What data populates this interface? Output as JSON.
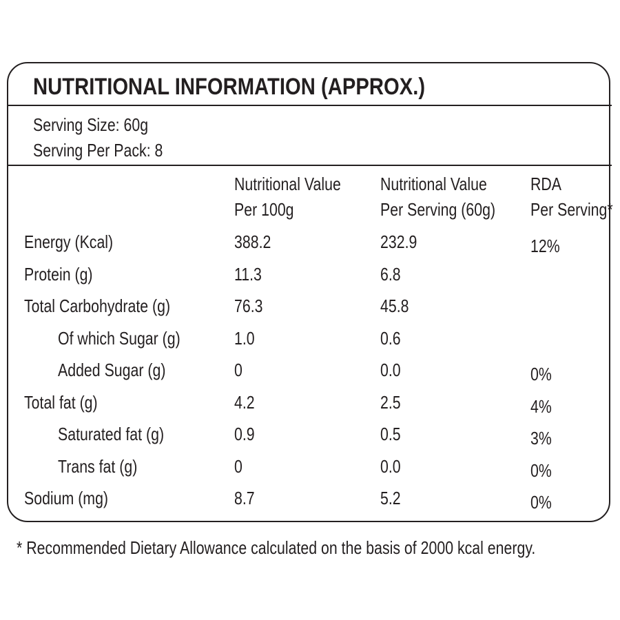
{
  "title": "NUTRITIONAL INFORMATION (APPROX.)",
  "serving": [
    "Serving Size: 60g",
    "Serving Per Pack: 8"
  ],
  "table": {
    "header": [
      [
        "Nutritional Value",
        "Per 100g"
      ],
      [
        "Nutritional Value",
        "Per Serving (60g)"
      ],
      [
        "RDA",
        "Per Serving*"
      ]
    ],
    "rows": [
      {
        "cells": [
          "Energy (Kcal)",
          "388.2",
          "232.9",
          "12%"
        ],
        "indent": false
      },
      {
        "cells": [
          "Protein (g)",
          "11.3",
          "6.8"
        ],
        "indent": false
      },
      {
        "cells": [
          "Total Carbohydrate (g)",
          "76.3",
          "45.8"
        ],
        "indent": false
      },
      {
        "cells": [
          "Of which Sugar (g)",
          "1.0",
          "0.6"
        ],
        "indent": true
      },
      {
        "cells": [
          "Added Sugar (g)",
          "0",
          "0.0",
          "0%"
        ],
        "indent": true
      },
      {
        "cells": [
          "Total fat (g)",
          "4.2",
          "2.5",
          "4%"
        ],
        "indent": false
      },
      {
        "cells": [
          "Saturated fat (g)",
          "0.9",
          "0.5",
          "3%"
        ],
        "indent": true
      },
      {
        "cells": [
          "Trans fat (g)",
          "0",
          "0.0",
          "0%"
        ],
        "indent": true
      },
      {
        "cells": [
          "Sodium (mg)",
          "8.7",
          "5.2",
          "0%"
        ],
        "indent": false
      }
    ]
  },
  "footnote": "* Recommended Dietary Allowance calculated on the basis of 2000 kcal energy."
}
